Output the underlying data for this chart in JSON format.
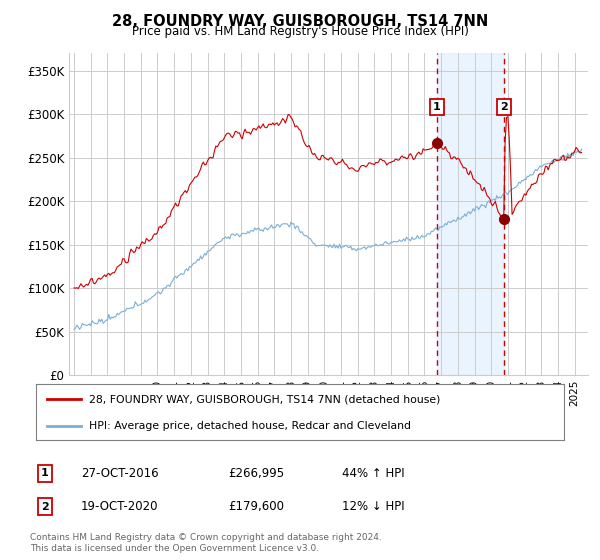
{
  "title": "28, FOUNDRY WAY, GUISBOROUGH, TS14 7NN",
  "subtitle": "Price paid vs. HM Land Registry's House Price Index (HPI)",
  "ylim": [
    0,
    370000
  ],
  "yticks": [
    0,
    50000,
    100000,
    150000,
    200000,
    250000,
    300000,
    350000
  ],
  "ytick_labels": [
    "£0",
    "£50K",
    "£100K",
    "£150K",
    "£200K",
    "£250K",
    "£300K",
    "£350K"
  ],
  "sale1_year": 2016.75,
  "sale1_price": 266995,
  "sale1_date": "27-OCT-2016",
  "sale1_pct": "44% ↑ HPI",
  "sale2_year": 2020.75,
  "sale2_price": 179600,
  "sale2_date": "19-OCT-2020",
  "sale2_pct": "12% ↓ HPI",
  "legend_line1": "28, FOUNDRY WAY, GUISBOROUGH, TS14 7NN (detached house)",
  "legend_line2": "HPI: Average price, detached house, Redcar and Cleveland",
  "footer": "Contains HM Land Registry data © Crown copyright and database right 2024.\nThis data is licensed under the Open Government Licence v3.0.",
  "line1_color": "#cc0000",
  "line2_color": "#7bafd4",
  "vline_color": "#cc0000",
  "shade_color": "#ddeeff",
  "grid_color": "#cccccc",
  "bg_color": "#ffffff",
  "box_color": "#cc0000",
  "xlim_left": 1994.7,
  "xlim_right": 2025.8
}
